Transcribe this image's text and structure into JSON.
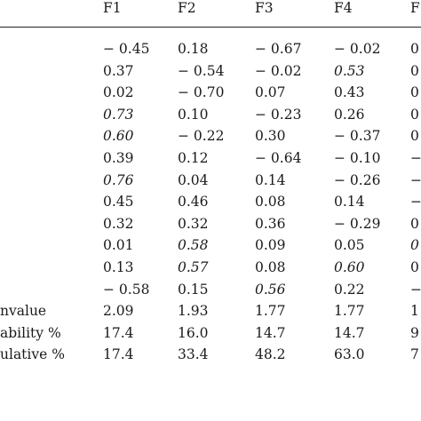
{
  "table": {
    "headers": [
      "F1",
      "F2",
      "F3",
      "F4",
      "F"
    ],
    "rows": [
      {
        "label": "",
        "cells": [
          {
            "v": "− 0.45",
            "it": false
          },
          {
            "v": "0.18",
            "it": false
          },
          {
            "v": "− 0.67",
            "it": false
          },
          {
            "v": "− 0.02",
            "it": false
          },
          {
            "v": "0",
            "it": false
          }
        ]
      },
      {
        "label": "",
        "cells": [
          {
            "v": "0.37",
            "it": false
          },
          {
            "v": "− 0.54",
            "it": false
          },
          {
            "v": "− 0.02",
            "it": false
          },
          {
            "v": "0.53",
            "it": true
          },
          {
            "v": "0",
            "it": false
          }
        ]
      },
      {
        "label": "",
        "cells": [
          {
            "v": "0.02",
            "it": false
          },
          {
            "v": "− 0.70",
            "it": false
          },
          {
            "v": "0.07",
            "it": false
          },
          {
            "v": "0.43",
            "it": false
          },
          {
            "v": "0",
            "it": false
          }
        ]
      },
      {
        "label": "",
        "cells": [
          {
            "v": "0.73",
            "it": true
          },
          {
            "v": "0.10",
            "it": false
          },
          {
            "v": "− 0.23",
            "it": false
          },
          {
            "v": "0.26",
            "it": false
          },
          {
            "v": "0",
            "it": false
          }
        ]
      },
      {
        "label": "",
        "cells": [
          {
            "v": "0.60",
            "it": true
          },
          {
            "v": "− 0.22",
            "it": false
          },
          {
            "v": "0.30",
            "it": false
          },
          {
            "v": "− 0.37",
            "it": false
          },
          {
            "v": "0",
            "it": false
          }
        ]
      },
      {
        "label": "",
        "cells": [
          {
            "v": "0.39",
            "it": false
          },
          {
            "v": "0.12",
            "it": false
          },
          {
            "v": "− 0.64",
            "it": false
          },
          {
            "v": "− 0.10",
            "it": false
          },
          {
            "v": "−",
            "it": false
          }
        ]
      },
      {
        "label": "",
        "cells": [
          {
            "v": "0.76",
            "it": true
          },
          {
            "v": "0.04",
            "it": false
          },
          {
            "v": "0.14",
            "it": false
          },
          {
            "v": "− 0.26",
            "it": false
          },
          {
            "v": "−",
            "it": false
          }
        ]
      },
      {
        "label": "",
        "cells": [
          {
            "v": "0.45",
            "it": false
          },
          {
            "v": "0.46",
            "it": false
          },
          {
            "v": "0.08",
            "it": false
          },
          {
            "v": "0.14",
            "it": false
          },
          {
            "v": "−",
            "it": false
          }
        ]
      },
      {
        "label": "",
        "cells": [
          {
            "v": "0.32",
            "it": false
          },
          {
            "v": "0.32",
            "it": false
          },
          {
            "v": "0.36",
            "it": false
          },
          {
            "v": "− 0.29",
            "it": false
          },
          {
            "v": "0",
            "it": false
          }
        ]
      },
      {
        "label": "",
        "cells": [
          {
            "v": "0.01",
            "it": false
          },
          {
            "v": "0.58",
            "it": true
          },
          {
            "v": "0.09",
            "it": false
          },
          {
            "v": "0.05",
            "it": false
          },
          {
            "v": "0",
            "it": true
          }
        ]
      },
      {
        "label": "",
        "cells": [
          {
            "v": "0.13",
            "it": false
          },
          {
            "v": "0.57",
            "it": true
          },
          {
            "v": "0.08",
            "it": false
          },
          {
            "v": "0.60",
            "it": true
          },
          {
            "v": "0",
            "it": false
          }
        ]
      },
      {
        "label": "",
        "cells": [
          {
            "v": "− 0.58",
            "it": false
          },
          {
            "v": "0.15",
            "it": false
          },
          {
            "v": "0.56",
            "it": true
          },
          {
            "v": "0.22",
            "it": false
          },
          {
            "v": "−",
            "it": false
          }
        ]
      },
      {
        "label": "nvalue",
        "cells": [
          {
            "v": "2.09",
            "it": false
          },
          {
            "v": "1.93",
            "it": false
          },
          {
            "v": "1.77",
            "it": false
          },
          {
            "v": "1.77",
            "it": false
          },
          {
            "v": "1",
            "it": false
          }
        ]
      },
      {
        "label": "ability %",
        "cells": [
          {
            "v": "17.4",
            "it": false
          },
          {
            "v": "16.0",
            "it": false
          },
          {
            "v": "14.7",
            "it": false
          },
          {
            "v": "14.7",
            "it": false
          },
          {
            "v": "9",
            "it": false
          }
        ]
      },
      {
        "label": "ulative %",
        "cells": [
          {
            "v": "17.4",
            "it": false
          },
          {
            "v": "33.4",
            "it": false
          },
          {
            "v": "48.2",
            "it": false
          },
          {
            "v": "63.0",
            "it": false
          },
          {
            "v": "7",
            "it": false
          }
        ]
      }
    ]
  }
}
